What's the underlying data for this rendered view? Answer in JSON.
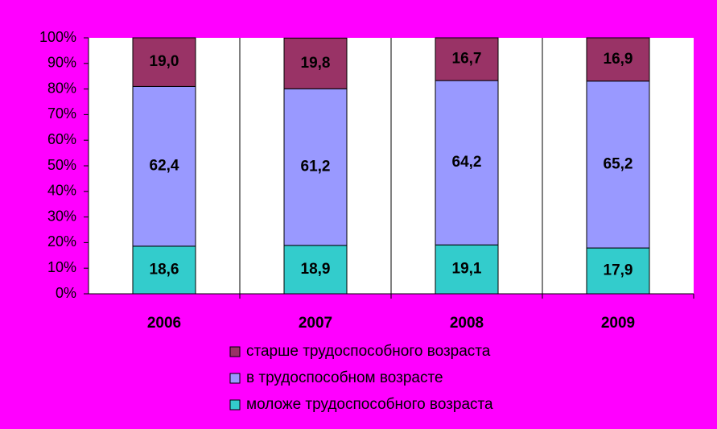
{
  "chart_data": {
    "type": "stacked_bar_100",
    "categories": [
      "2006",
      "2007",
      "2008",
      "2009"
    ],
    "series": [
      {
        "name": "моложе трудоспособного возраста",
        "color": "#33cccc",
        "values": [
          18.6,
          18.9,
          19.1,
          17.9
        ],
        "value_labels": [
          "18,6",
          "18,9",
          "19,1",
          "17,9"
        ]
      },
      {
        "name": "в трудоспособном возрасте",
        "color": "#9999ff",
        "values": [
          62.4,
          61.2,
          64.2,
          65.2
        ],
        "value_labels": [
          "62,4",
          "61,2",
          "64,2",
          "65,2"
        ]
      },
      {
        "name": "старше трудоспособного возраста",
        "color": "#993366",
        "values": [
          19.0,
          19.8,
          16.7,
          16.9
        ],
        "value_labels": [
          "19,0",
          "19,8",
          "16,7",
          "16,9"
        ]
      }
    ],
    "ylim": [
      0,
      100
    ],
    "yticks": [
      {
        "value": 0,
        "label": "0%"
      },
      {
        "value": 10,
        "label": "10%"
      },
      {
        "value": 20,
        "label": "20%"
      },
      {
        "value": 30,
        "label": "30%"
      },
      {
        "value": 40,
        "label": "40%"
      },
      {
        "value": 50,
        "label": "50%"
      },
      {
        "value": 60,
        "label": "60%"
      },
      {
        "value": 70,
        "label": "70%"
      },
      {
        "value": 80,
        "label": "80%"
      },
      {
        "value": 90,
        "label": "90%"
      },
      {
        "value": 100,
        "label": "100%"
      }
    ]
  }
}
